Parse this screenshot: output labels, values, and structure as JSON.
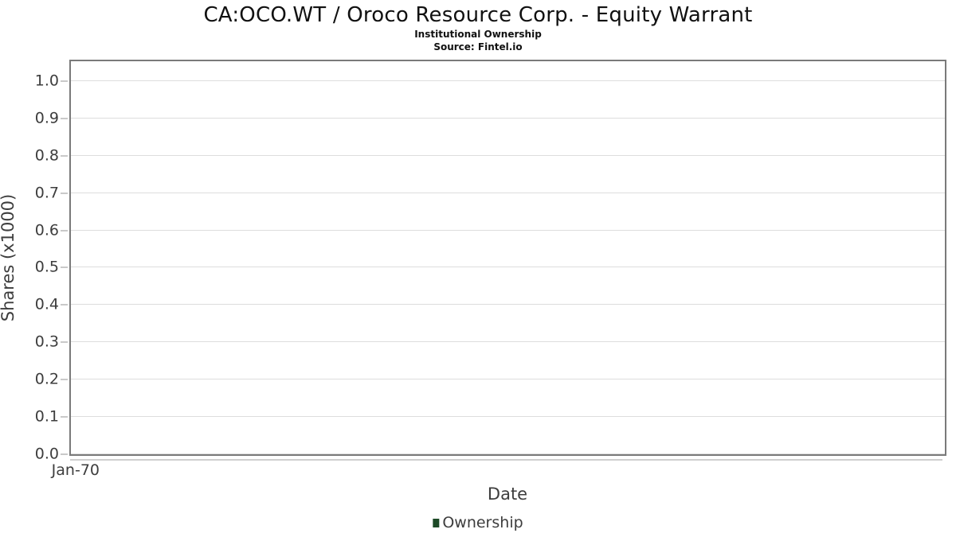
{
  "header": {
    "title": "CA:OCO.WT / Oroco Resource Corp. - Equity Warrant",
    "subtitle": "Institutional Ownership",
    "source": "Source: Fintel.io"
  },
  "chart_data": {
    "type": "line",
    "title": "CA:OCO.WT / Oroco Resource Corp. - Equity Warrant",
    "subtitle": "Institutional Ownership",
    "source": "Source: Fintel.io",
    "xlabel": "Date",
    "ylabel": "Shares (x1000)",
    "x_tick_labels": [
      "Jan-70"
    ],
    "y_tick_labels": [
      "0.0",
      "0.1",
      "0.2",
      "0.3",
      "0.4",
      "0.5",
      "0.6",
      "0.7",
      "0.8",
      "0.9",
      "1.0"
    ],
    "y_tick_values": [
      0,
      0.1,
      0.2,
      0.3,
      0.4,
      0.5,
      0.6,
      0.7,
      0.8,
      0.9,
      1.0
    ],
    "ylim": [
      0,
      1.053
    ],
    "grid": true,
    "legend": {
      "position": "bottom-center",
      "entries": [
        {
          "label": "Ownership",
          "color": "#1d4a27"
        }
      ]
    },
    "series": [
      {
        "name": "Ownership",
        "points": []
      }
    ],
    "colors": {
      "legend_marker": "#1d4a27",
      "grid": "#dddddd",
      "plot_border": "#7a7a7a",
      "tick": "#c9c9c9",
      "text": "#3d3d3d",
      "title_text": "#111111",
      "background": "#ffffff"
    }
  }
}
